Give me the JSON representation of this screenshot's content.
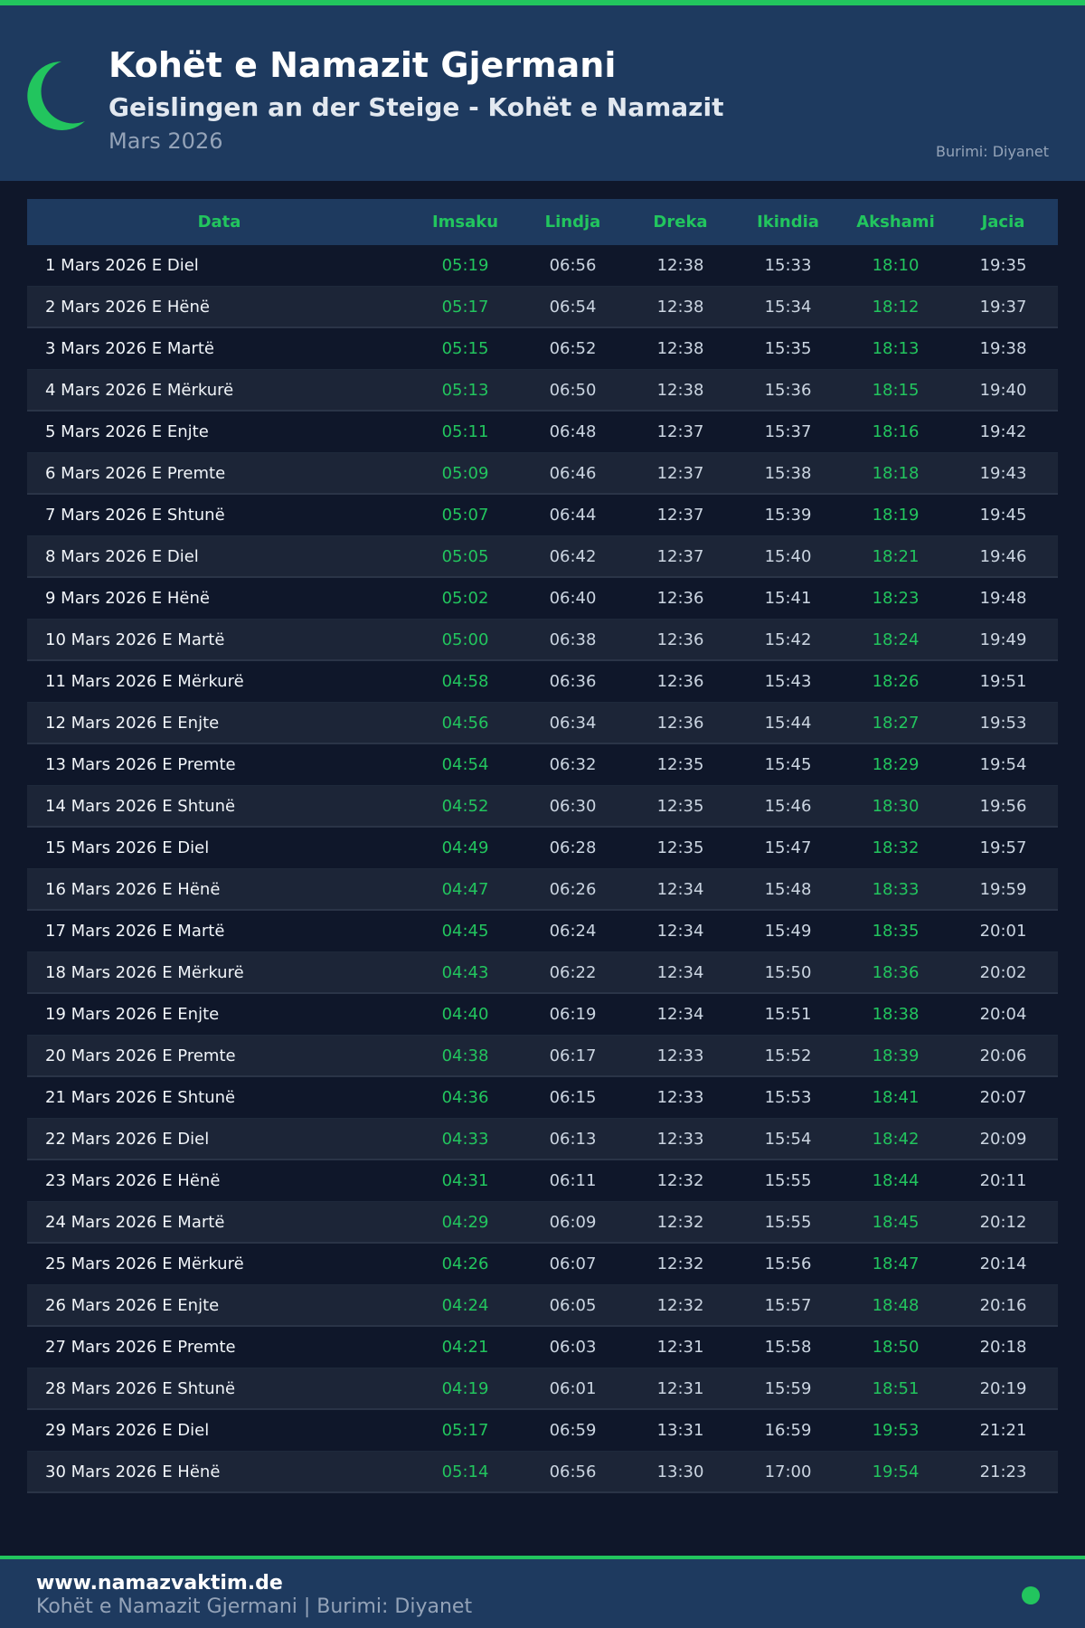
{
  "header": {
    "title": "Kohët e Namazit Gjermani",
    "subtitle": "Geislingen an der Steige - Kohët e Namazit",
    "month": "Mars 2026",
    "source": "Burimi: Diyanet",
    "icon": "crescent-moon-icon"
  },
  "colors": {
    "accent": "#22c55e",
    "header_bg": "#1e3a5f",
    "page_bg": "#0f172a"
  },
  "table": {
    "columns": [
      "Data",
      "Imsaku",
      "Lindja",
      "Dreka",
      "Ikindia",
      "Akshami",
      "Jacia"
    ],
    "rows": [
      [
        "1 Mars 2026 E Diel",
        "05:19",
        "06:56",
        "12:38",
        "15:33",
        "18:10",
        "19:35"
      ],
      [
        "2 Mars 2026 E Hënë",
        "05:17",
        "06:54",
        "12:38",
        "15:34",
        "18:12",
        "19:37"
      ],
      [
        "3 Mars 2026 E Martë",
        "05:15",
        "06:52",
        "12:38",
        "15:35",
        "18:13",
        "19:38"
      ],
      [
        "4 Mars 2026 E Mërkurë",
        "05:13",
        "06:50",
        "12:38",
        "15:36",
        "18:15",
        "19:40"
      ],
      [
        "5 Mars 2026 E Enjte",
        "05:11",
        "06:48",
        "12:37",
        "15:37",
        "18:16",
        "19:42"
      ],
      [
        "6 Mars 2026 E Premte",
        "05:09",
        "06:46",
        "12:37",
        "15:38",
        "18:18",
        "19:43"
      ],
      [
        "7 Mars 2026 E Shtunë",
        "05:07",
        "06:44",
        "12:37",
        "15:39",
        "18:19",
        "19:45"
      ],
      [
        "8 Mars 2026 E Diel",
        "05:05",
        "06:42",
        "12:37",
        "15:40",
        "18:21",
        "19:46"
      ],
      [
        "9 Mars 2026 E Hënë",
        "05:02",
        "06:40",
        "12:36",
        "15:41",
        "18:23",
        "19:48"
      ],
      [
        "10 Mars 2026 E Martë",
        "05:00",
        "06:38",
        "12:36",
        "15:42",
        "18:24",
        "19:49"
      ],
      [
        "11 Mars 2026 E Mërkurë",
        "04:58",
        "06:36",
        "12:36",
        "15:43",
        "18:26",
        "19:51"
      ],
      [
        "12 Mars 2026 E Enjte",
        "04:56",
        "06:34",
        "12:36",
        "15:44",
        "18:27",
        "19:53"
      ],
      [
        "13 Mars 2026 E Premte",
        "04:54",
        "06:32",
        "12:35",
        "15:45",
        "18:29",
        "19:54"
      ],
      [
        "14 Mars 2026 E Shtunë",
        "04:52",
        "06:30",
        "12:35",
        "15:46",
        "18:30",
        "19:56"
      ],
      [
        "15 Mars 2026 E Diel",
        "04:49",
        "06:28",
        "12:35",
        "15:47",
        "18:32",
        "19:57"
      ],
      [
        "16 Mars 2026 E Hënë",
        "04:47",
        "06:26",
        "12:34",
        "15:48",
        "18:33",
        "19:59"
      ],
      [
        "17 Mars 2026 E Martë",
        "04:45",
        "06:24",
        "12:34",
        "15:49",
        "18:35",
        "20:01"
      ],
      [
        "18 Mars 2026 E Mërkurë",
        "04:43",
        "06:22",
        "12:34",
        "15:50",
        "18:36",
        "20:02"
      ],
      [
        "19 Mars 2026 E Enjte",
        "04:40",
        "06:19",
        "12:34",
        "15:51",
        "18:38",
        "20:04"
      ],
      [
        "20 Mars 2026 E Premte",
        "04:38",
        "06:17",
        "12:33",
        "15:52",
        "18:39",
        "20:06"
      ],
      [
        "21 Mars 2026 E Shtunë",
        "04:36",
        "06:15",
        "12:33",
        "15:53",
        "18:41",
        "20:07"
      ],
      [
        "22 Mars 2026 E Diel",
        "04:33",
        "06:13",
        "12:33",
        "15:54",
        "18:42",
        "20:09"
      ],
      [
        "23 Mars 2026 E Hënë",
        "04:31",
        "06:11",
        "12:32",
        "15:55",
        "18:44",
        "20:11"
      ],
      [
        "24 Mars 2026 E Martë",
        "04:29",
        "06:09",
        "12:32",
        "15:55",
        "18:45",
        "20:12"
      ],
      [
        "25 Mars 2026 E Mërkurë",
        "04:26",
        "06:07",
        "12:32",
        "15:56",
        "18:47",
        "20:14"
      ],
      [
        "26 Mars 2026 E Enjte",
        "04:24",
        "06:05",
        "12:32",
        "15:57",
        "18:48",
        "20:16"
      ],
      [
        "27 Mars 2026 E Premte",
        "04:21",
        "06:03",
        "12:31",
        "15:58",
        "18:50",
        "20:18"
      ],
      [
        "28 Mars 2026 E Shtunë",
        "04:19",
        "06:01",
        "12:31",
        "15:59",
        "18:51",
        "20:19"
      ],
      [
        "29 Mars 2026 E Diel",
        "05:17",
        "06:59",
        "13:31",
        "16:59",
        "19:53",
        "21:21"
      ],
      [
        "30 Mars 2026 E Hënë",
        "05:14",
        "06:56",
        "13:30",
        "17:00",
        "19:54",
        "21:23"
      ]
    ]
  },
  "footer": {
    "url": "www.namazvaktim.de",
    "text": "Kohët e Namazit Gjermani | Burimi: Diyanet"
  }
}
